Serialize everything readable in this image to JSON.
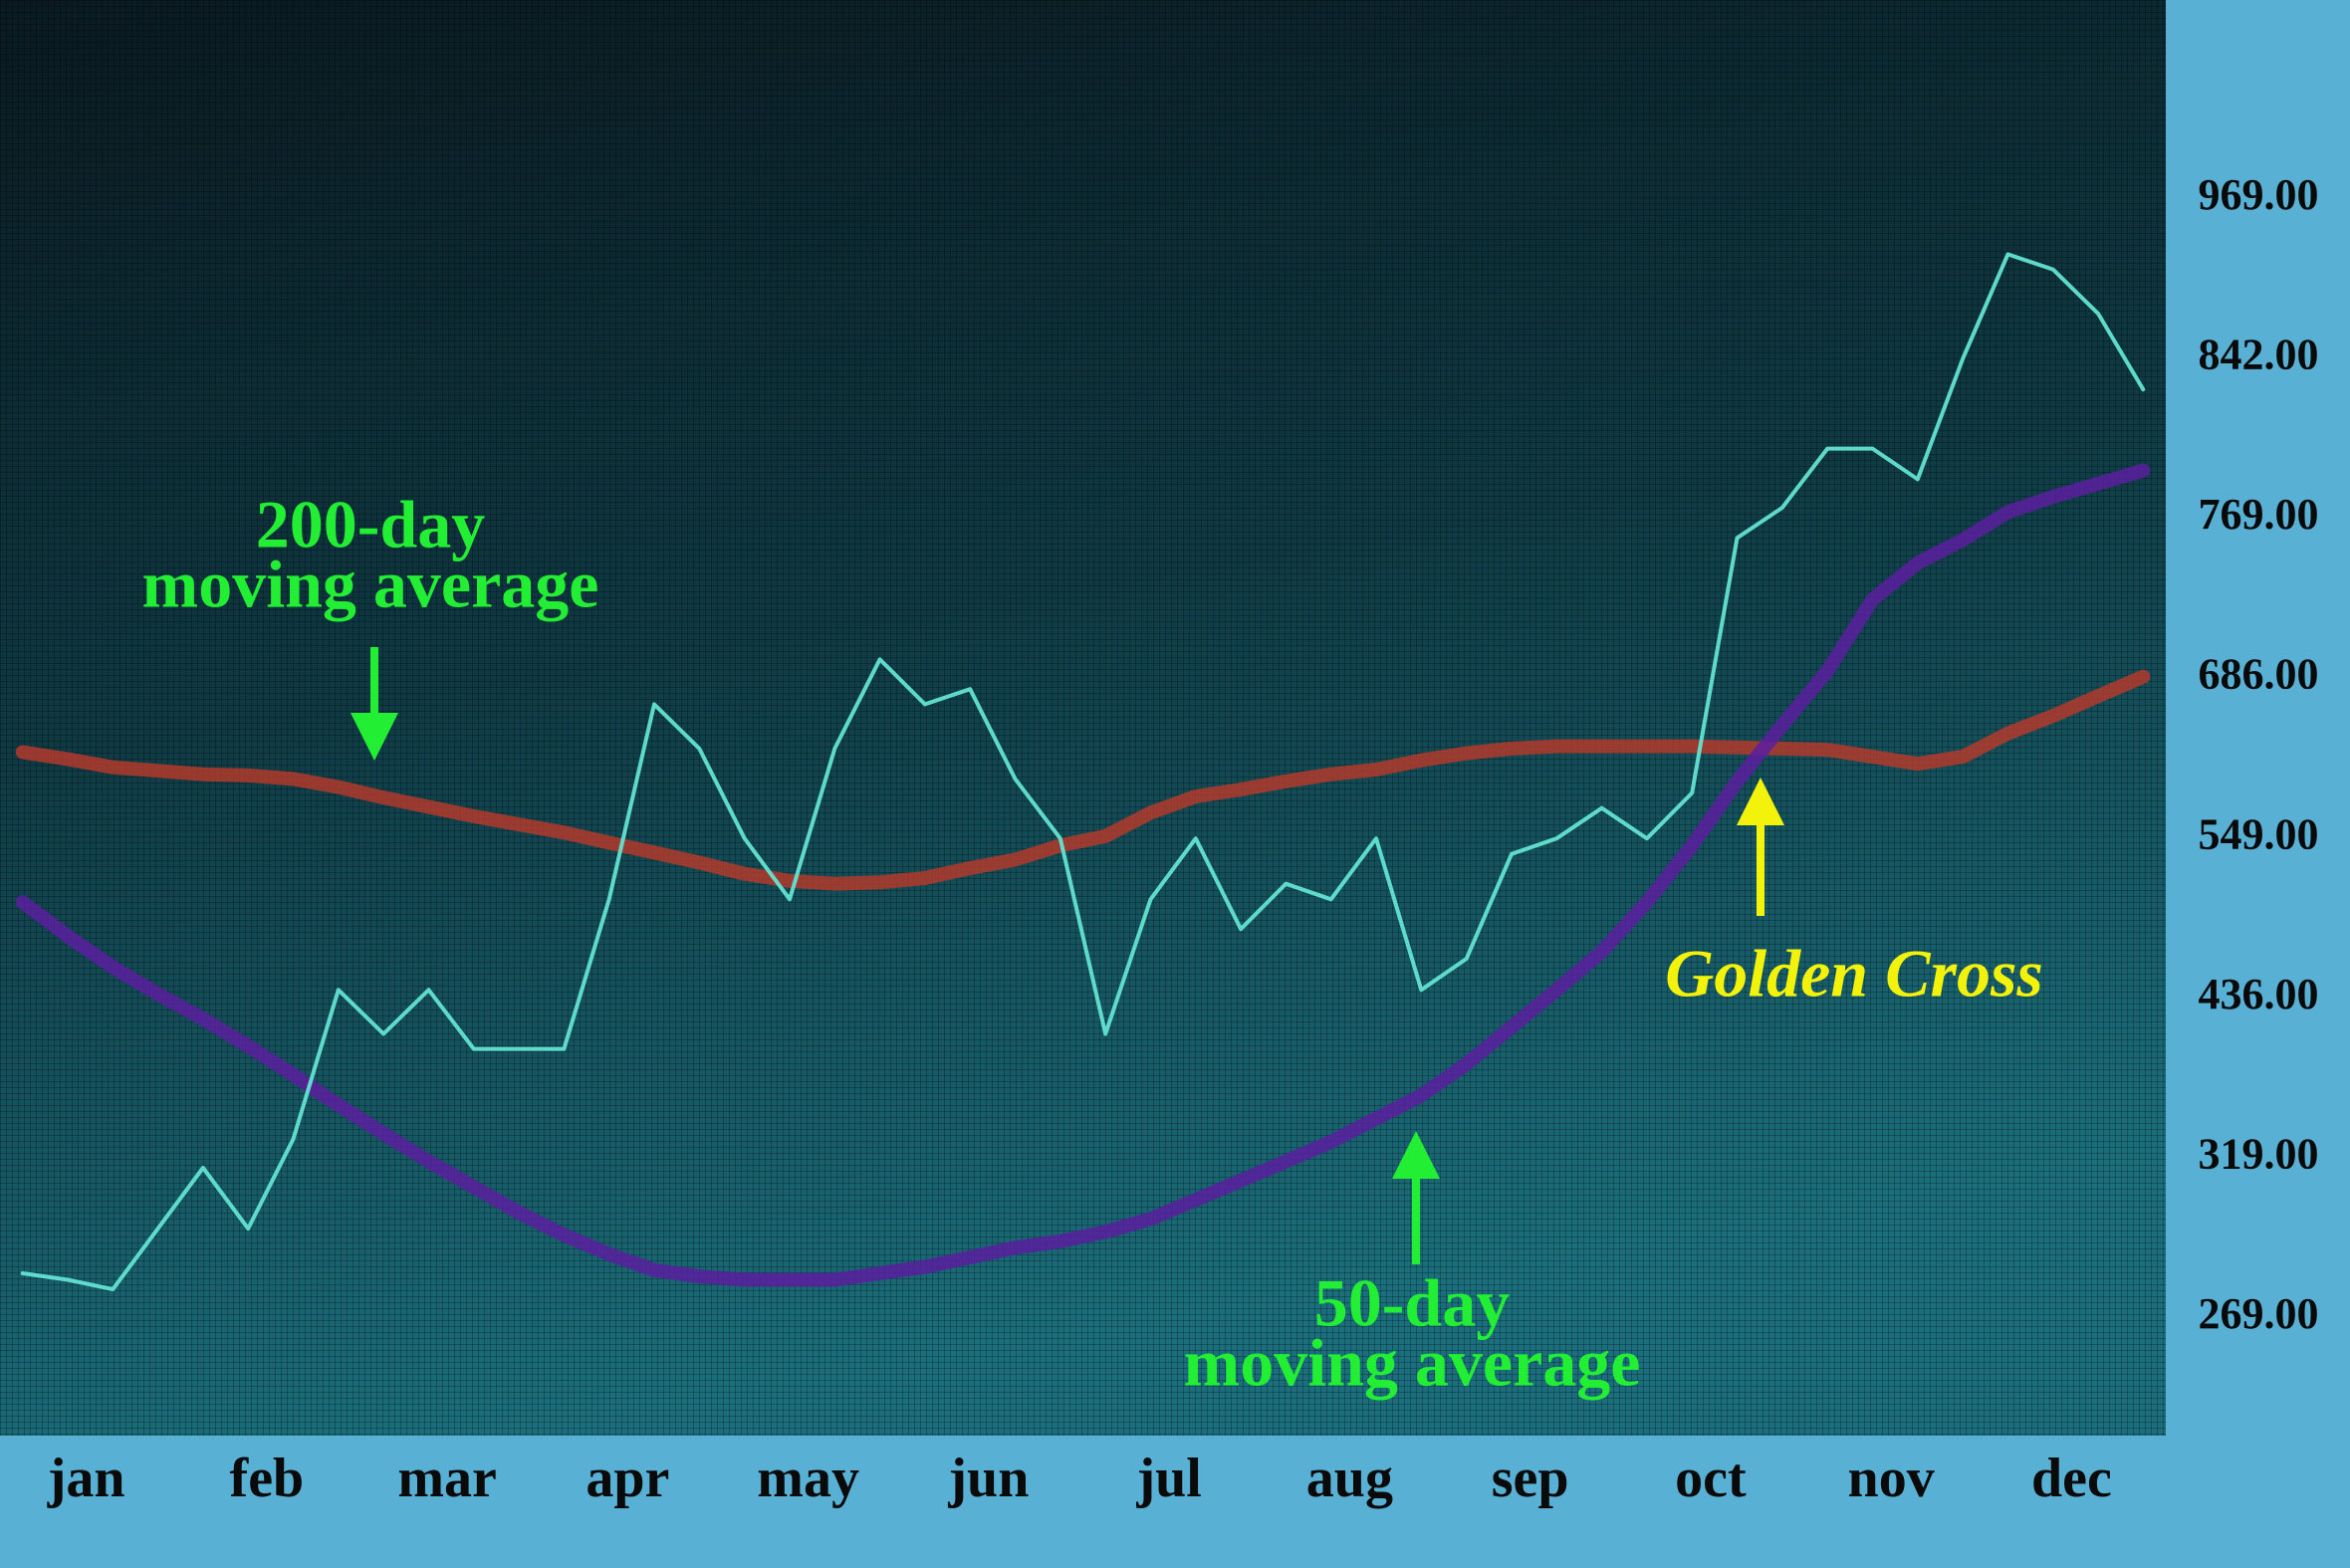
{
  "chart_data": {
    "type": "line",
    "categories": [
      "jan",
      null,
      null,
      null,
      "feb",
      null,
      null,
      null,
      "mar",
      null,
      null,
      null,
      "apr",
      null,
      null,
      null,
      "may",
      null,
      null,
      null,
      "jun",
      null,
      null,
      null,
      "jul",
      null,
      null,
      null,
      "aug",
      null,
      null,
      null,
      "sep",
      null,
      null,
      null,
      "oct",
      null,
      null,
      null,
      "nov",
      null,
      null,
      null,
      "dec",
      null,
      null,
      null
    ],
    "series": [
      {
        "color": "#63e3d2",
        "width": 4,
        "values": [
          283,
          281,
          278,
          297,
          316,
          297,
          333,
          442,
          410,
          442,
          399,
          399,
          399,
          506,
          664,
          626,
          549,
          506,
          626,
          696,
          664,
          677,
          600,
          549,
          410,
          506,
          549,
          485,
          517,
          506,
          549,
          442,
          464,
          538,
          549,
          575,
          549,
          588,
          759,
          774,
          801,
          801,
          787,
          842,
          925,
          913,
          878,
          828
        ]
      },
      {
        "color": "#b23a2c",
        "width": 14,
        "values": [
          623,
          617,
          610,
          607,
          604,
          603,
          600,
          593,
          584,
          576,
          568,
          561,
          554,
          546,
          539,
          532,
          524,
          519,
          517,
          518,
          521,
          528,
          534,
          544,
          551,
          571,
          585,
          591,
          598,
          604,
          608,
          616,
          622,
          626,
          628,
          628,
          628,
          628,
          627,
          626,
          625,
          619,
          613,
          619,
          639,
          654,
          671,
          687
        ]
      },
      {
        "color": "#5b1f9f",
        "width": 14,
        "values": [
          504,
          480,
          458,
          439,
          421,
          401,
          380,
          358,
          337,
          318,
          310,
          302,
          295,
          289,
          284,
          282,
          281,
          281,
          281,
          283,
          285,
          288,
          291,
          293,
          296,
          300,
          306,
          312,
          318,
          331,
          348,
          365,
          388,
          415,
          442,
          469,
          504,
          544,
          598,
          646,
          690,
          727,
          746,
          758,
          772,
          779,
          785,
          791
        ]
      }
    ],
    "ylim": [
      233,
      1127
    ],
    "yticks": [
      {
        "value": 269,
        "label": "269.00"
      },
      {
        "value": 319,
        "label": "319.00"
      },
      {
        "value": 436,
        "label": "436.00"
      },
      {
        "value": 549,
        "label": "549.00"
      },
      {
        "value": 686,
        "label": "686.00"
      },
      {
        "value": 769,
        "label": "769.00"
      },
      {
        "value": 842,
        "label": "842.00"
      },
      {
        "value": 969,
        "label": "969.00"
      }
    ],
    "annotations": [
      {
        "lines": [
          "200-day",
          "moving average"
        ],
        "color": "#22ee33"
      },
      {
        "lines": [
          "50-day",
          "moving average"
        ],
        "color": "#22ee33"
      },
      {
        "lines": [
          "Golden Cross"
        ],
        "color": "#f2f20a"
      }
    ]
  }
}
